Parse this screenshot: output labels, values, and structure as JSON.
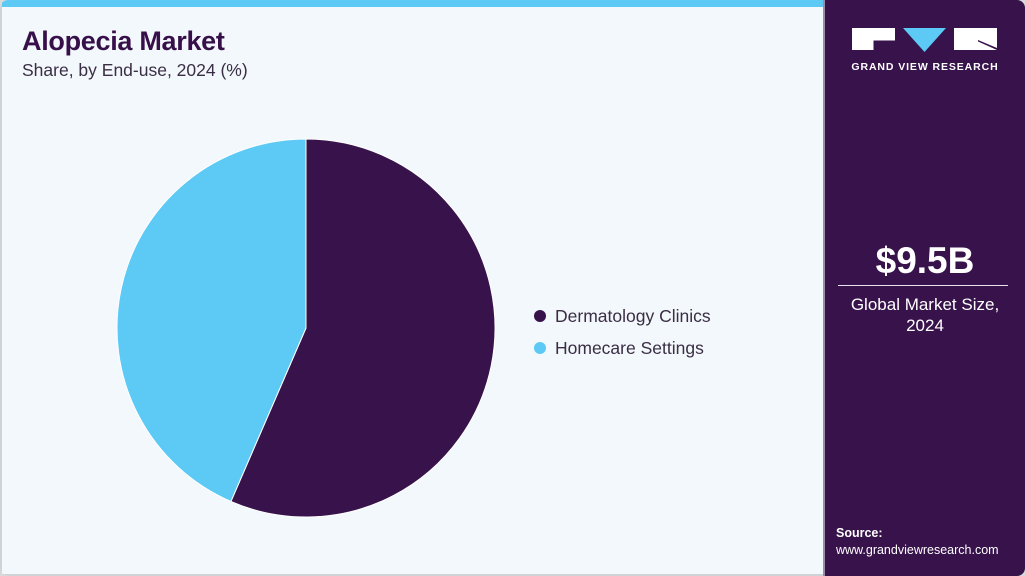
{
  "header": {
    "title": "Alopecia Market",
    "subtitle": "Share, by End-use, 2024 (%)"
  },
  "legend": {
    "items": [
      {
        "label": "Dermatology Clinics",
        "color": "#37124b"
      },
      {
        "label": "Homecare Settings",
        "color": "#5ccaf5"
      }
    ]
  },
  "sidebar": {
    "brand": "GRAND VIEW RESEARCH",
    "market_size": "$9.5B",
    "market_label_line1": "Global Market Size,",
    "market_label_line2": "2024",
    "source_label": "Source:",
    "source_url": "www.grandviewresearch.com"
  },
  "colors": {
    "brand_dark": "#37124b",
    "accent": "#5ccaf5",
    "background": "#f3f8fc"
  },
  "chart_data": {
    "type": "pie",
    "title": "Alopecia Market",
    "subtitle": "Share, by End-use, 2024 (%)",
    "categories": [
      "Dermatology Clinics",
      "Homecare Settings"
    ],
    "values": [
      56.5,
      43.5
    ],
    "colors": [
      "#37124b",
      "#5ccaf5"
    ],
    "start_angle": "12 o'clock, clockwise",
    "legend_position": "right",
    "data_labels": false
  }
}
